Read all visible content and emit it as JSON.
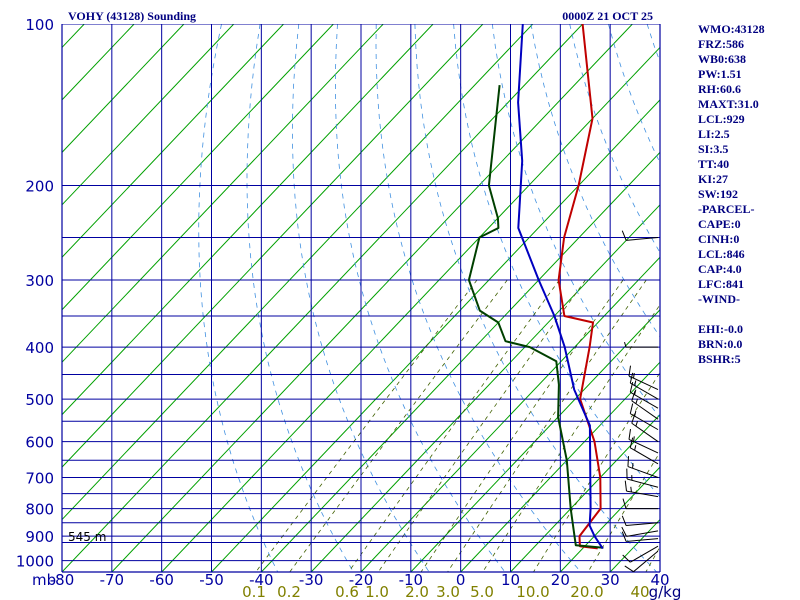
{
  "header": {
    "title": "VOHY (43128) Sounding",
    "datetime": "0000Z 21 OCT 25"
  },
  "surface_height_label": "545 m",
  "indices": [
    "WMO:43128",
    "FRZ:586",
    "WB0:638",
    "PW:1.51",
    "RH:60.6",
    "MAXT:31.0",
    "LCL:929",
    "LI:2.5",
    "SI:3.5",
    "TT:40",
    "KI:27",
    "SW:192",
    "-PARCEL-",
    "CAPE:0",
    "CINH:0",
    "LCL:846",
    "CAP:4.0",
    "LFC:841",
    "-WIND-",
    "",
    "EHI:-0.0",
    "BRN:0.0",
    "BSHR:5"
  ],
  "chart_data": {
    "type": "line",
    "title": "VOHY (43128) Sounding",
    "subtitle": "0000Z 21 OCT 25",
    "x_axis": {
      "unit_label": "mb",
      "ticks": [
        -80,
        -70,
        -60,
        -50,
        -40,
        -30,
        -20,
        -10,
        0,
        10,
        20,
        30,
        40
      ],
      "tick_labels": [
        "-80",
        "-70",
        "-60",
        "-50",
        "-40",
        "-30",
        "-20",
        "-10",
        "0",
        "10",
        "20",
        "30",
        "40"
      ],
      "range": [
        -80,
        40
      ]
    },
    "y_axis": {
      "ticks": [
        100,
        200,
        300,
        400,
        500,
        600,
        700,
        800,
        900,
        1000
      ],
      "tick_labels": [
        "100",
        "200",
        "300",
        "400",
        "500",
        "600",
        "700",
        "800",
        "900",
        "1000"
      ],
      "range": [
        100,
        1050
      ],
      "scale": "log"
    },
    "extra_pressure_lines": [
      250,
      350,
      450,
      550,
      650,
      750,
      850,
      925
    ],
    "mixing_ratio_labels": {
      "labels": [
        "0.1",
        "0.2",
        "0.6",
        "1.0",
        "2.0",
        "3.0",
        "5.0",
        "10.0",
        "20.0",
        "40",
        "g/kg"
      ],
      "colors": [
        "#808000",
        "#808000",
        "#808000",
        "#808000",
        "#808000",
        "#808000",
        "#808000",
        "#808000",
        "#808000",
        "#808000",
        "#000080"
      ]
    },
    "grid": true,
    "colors": {
      "temperature": "#c00000",
      "dewpoint": "#004000",
      "parcel": "#0000c0",
      "grid": "#0000a0",
      "dry_adiabat": "#00a000",
      "moist_adiabat": "#4090e0",
      "mixing_ratio": "#406000",
      "wind": "#000000"
    },
    "series": [
      {
        "key": "temperature",
        "points": [
          [
            -80,
            100
          ],
          [
            -60,
            150
          ],
          [
            -50,
            200
          ],
          [
            -43,
            250
          ],
          [
            -36,
            300
          ],
          [
            -28,
            350
          ],
          [
            -21,
            360
          ],
          [
            -17,
            400
          ],
          [
            -9,
            500
          ],
          [
            2,
            600
          ],
          [
            10,
            700
          ],
          [
            16,
            800
          ],
          [
            17,
            900
          ],
          [
            19,
            940
          ],
          [
            23,
            949
          ]
        ]
      },
      {
        "key": "dewpoint",
        "points": [
          [
            -85,
            130
          ],
          [
            -68,
            200
          ],
          [
            -60,
            230
          ],
          [
            -58,
            240
          ],
          [
            -60,
            250
          ],
          [
            -54,
            300
          ],
          [
            -46,
            342
          ],
          [
            -40,
            360
          ],
          [
            -35,
            390
          ],
          [
            -29,
            400
          ],
          [
            -21,
            425
          ],
          [
            -16,
            470
          ],
          [
            -10,
            540
          ],
          [
            0,
            650
          ],
          [
            10,
            800
          ],
          [
            16,
            900
          ],
          [
            18,
            936
          ],
          [
            24,
            946
          ]
        ]
      },
      {
        "key": "parcel",
        "points": [
          [
            -92,
            100
          ],
          [
            -78,
            140
          ],
          [
            -66,
            180
          ],
          [
            -54,
            240
          ],
          [
            -40,
            300
          ],
          [
            -30,
            350
          ],
          [
            -22,
            400
          ],
          [
            -12,
            480
          ],
          [
            -2,
            560
          ],
          [
            8,
            700
          ],
          [
            14,
            800
          ],
          [
            17,
            860
          ],
          [
            20,
            900
          ],
          [
            24,
            949
          ]
        ]
      }
    ],
    "wind_barbs": [
      {
        "pressure": 250,
        "direction": 265,
        "speed": 10
      },
      {
        "pressure": 400,
        "direction": 270,
        "speed": 5
      },
      {
        "pressure": 480,
        "direction": 295,
        "speed": 15
      },
      {
        "pressure": 500,
        "direction": 300,
        "speed": 15
      },
      {
        "pressure": 520,
        "direction": 300,
        "speed": 15
      },
      {
        "pressure": 545,
        "direction": 305,
        "speed": 15
      },
      {
        "pressure": 570,
        "direction": 300,
        "speed": 15
      },
      {
        "pressure": 600,
        "direction": 305,
        "speed": 15
      },
      {
        "pressure": 630,
        "direction": 295,
        "speed": 15
      },
      {
        "pressure": 660,
        "direction": 300,
        "speed": 15
      },
      {
        "pressure": 700,
        "direction": 290,
        "speed": 15
      },
      {
        "pressure": 730,
        "direction": 285,
        "speed": 15
      },
      {
        "pressure": 760,
        "direction": 280,
        "speed": 15
      },
      {
        "pressure": 800,
        "direction": 270,
        "speed": 10
      },
      {
        "pressure": 850,
        "direction": 265,
        "speed": 10
      },
      {
        "pressure": 880,
        "direction": 260,
        "speed": 10
      },
      {
        "pressure": 910,
        "direction": 265,
        "speed": 10
      },
      {
        "pressure": 940,
        "direction": 240,
        "speed": 10
      },
      {
        "pressure": 960,
        "direction": 230,
        "speed": 10
      }
    ]
  }
}
